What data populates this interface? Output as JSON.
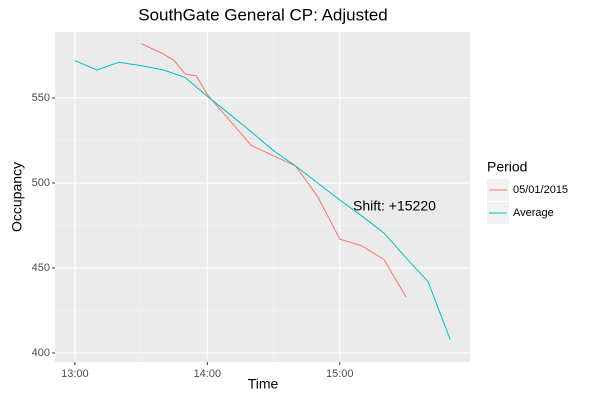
{
  "chart_data": {
    "type": "line",
    "title": "SouthGate General CP: Adjusted",
    "x_label": "Time",
    "y_label": "Occupancy",
    "annotation": "Shift: +15220",
    "legend_title": "Period",
    "legend_position": "right",
    "grid": true,
    "xlim": [
      771,
      959
    ],
    "ylim": [
      394.7,
      588.8
    ],
    "xticks": [
      {
        "value": 780,
        "label": "13:00"
      },
      {
        "value": 840,
        "label": "14:00"
      },
      {
        "value": 900,
        "label": "15:00"
      }
    ],
    "yticks": [
      400,
      450,
      500,
      550
    ],
    "series": [
      {
        "name": "05/01/2015",
        "color": "#F8766D",
        "x": [
          810,
          820,
          825,
          830,
          835,
          840,
          850,
          860,
          870,
          880,
          890,
          900,
          910,
          920,
          930
        ],
        "values": [
          582,
          576,
          572,
          564,
          563,
          552,
          537,
          522,
          516,
          510,
          492,
          467,
          463,
          455,
          433
        ]
      },
      {
        "name": "Average",
        "color": "#00BFC4",
        "x": [
          780,
          790,
          800,
          810,
          820,
          830,
          840,
          850,
          860,
          870,
          880,
          890,
          900,
          910,
          920,
          930,
          940,
          950
        ],
        "values": [
          572,
          566.5,
          571,
          569,
          566.5,
          562,
          551,
          540.6,
          530,
          519,
          510,
          500,
          490,
          480.6,
          470.6,
          456,
          442,
          408
        ]
      }
    ]
  }
}
